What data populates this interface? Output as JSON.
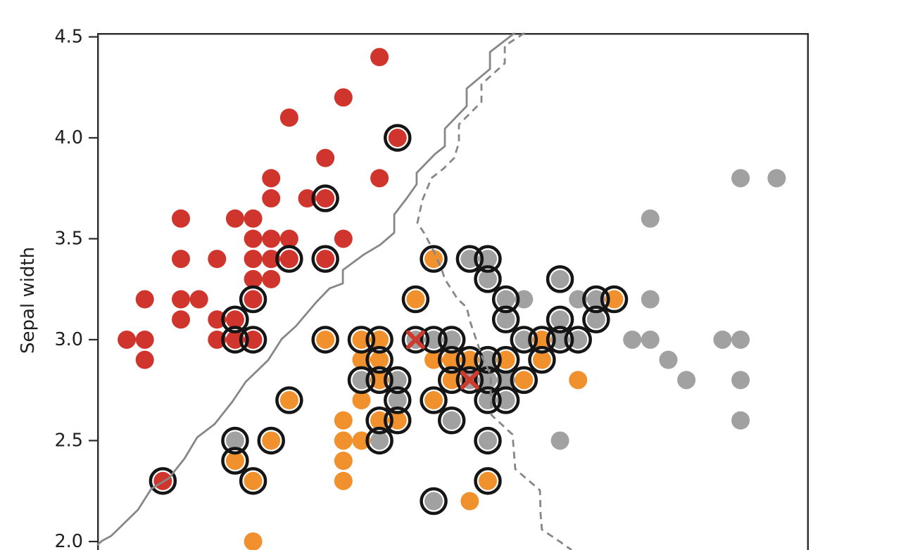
{
  "chart_data": {
    "type": "scatter",
    "title": "",
    "ylabel": "Sepal width",
    "grid": false,
    "legend": "none",
    "x_range_visible": [
      4.136,
      8.078
    ],
    "y_range_visible": [
      1.958,
      4.519
    ],
    "y_ticks": {
      "values": [
        4.5,
        4.0,
        3.5,
        3.0,
        2.5,
        2.0
      ],
      "labels": [
        "4.5",
        "4.0",
        "3.5",
        "3.0",
        "2.5",
        "2.0"
      ]
    },
    "colors": {
      "red": "#cf352c",
      "orange": "#f0912d",
      "gray": "#a1a1a1",
      "ring": "#151515",
      "x_marker": "#cc3b2e",
      "boundary": "#878787",
      "spine": "#2b2b2b",
      "tick_text": "#1f1f1f"
    },
    "series": [
      {
        "name": "red",
        "color": "#cf352c",
        "points": [
          [
            4.3,
            3.0
          ],
          [
            4.4,
            2.9
          ],
          [
            4.4,
            3.0
          ],
          [
            4.4,
            3.2
          ],
          [
            4.6,
            3.1
          ],
          [
            4.6,
            3.2
          ],
          [
            4.6,
            3.4
          ],
          [
            4.6,
            3.6
          ],
          [
            4.7,
            3.2
          ],
          [
            4.8,
            3.0
          ],
          [
            4.8,
            3.1
          ],
          [
            4.8,
            3.4
          ],
          [
            4.9,
            3.6
          ],
          [
            5.0,
            3.3
          ],
          [
            5.0,
            3.4
          ],
          [
            5.0,
            3.5
          ],
          [
            5.0,
            3.6
          ],
          [
            5.1,
            3.3
          ],
          [
            5.1,
            3.4
          ],
          [
            5.1,
            3.5
          ],
          [
            5.1,
            3.7
          ],
          [
            5.1,
            3.8
          ],
          [
            5.2,
            3.5
          ],
          [
            5.2,
            4.1
          ],
          [
            5.3,
            3.7
          ],
          [
            5.4,
            3.9
          ],
          [
            5.5,
            3.5
          ],
          [
            5.5,
            4.2
          ],
          [
            5.7,
            3.8
          ],
          [
            5.7,
            4.4
          ]
        ],
        "circled_points": [
          [
            4.5,
            2.3
          ],
          [
            4.9,
            3.0
          ],
          [
            4.9,
            3.1
          ],
          [
            5.0,
            3.0
          ],
          [
            5.0,
            3.2
          ],
          [
            5.2,
            3.4
          ],
          [
            5.4,
            3.4
          ],
          [
            5.4,
            3.7
          ],
          [
            5.8,
            4.0
          ]
        ]
      },
      {
        "name": "orange",
        "color": "#f0912d",
        "points": [
          [
            5.0,
            2.0
          ],
          [
            5.5,
            2.3
          ],
          [
            5.5,
            2.4
          ],
          [
            5.5,
            2.5
          ],
          [
            5.5,
            2.6
          ],
          [
            5.6,
            2.5
          ],
          [
            5.6,
            2.7
          ],
          [
            5.6,
            2.9
          ],
          [
            6.0,
            2.9
          ],
          [
            6.2,
            2.2
          ],
          [
            6.8,
            2.8
          ]
        ],
        "circled_points": [
          [
            4.9,
            2.4
          ],
          [
            5.0,
            2.3
          ],
          [
            5.1,
            2.5
          ],
          [
            5.2,
            2.7
          ],
          [
            5.4,
            3.0
          ],
          [
            5.6,
            3.0
          ],
          [
            5.7,
            2.6
          ],
          [
            5.7,
            2.8
          ],
          [
            5.7,
            2.9
          ],
          [
            5.7,
            3.0
          ],
          [
            5.8,
            2.6
          ],
          [
            5.9,
            3.2
          ],
          [
            6.0,
            2.7
          ],
          [
            6.0,
            3.4
          ],
          [
            6.1,
            2.8
          ],
          [
            6.1,
            2.9
          ],
          [
            6.2,
            2.9
          ],
          [
            6.3,
            2.3
          ],
          [
            6.4,
            2.9
          ],
          [
            6.5,
            2.8
          ],
          [
            6.6,
            2.9
          ],
          [
            6.6,
            3.0
          ],
          [
            7.0,
            3.2
          ]
        ]
      },
      {
        "name": "gray",
        "color": "#a1a1a1",
        "points": [
          [
            6.4,
            2.8
          ],
          [
            6.5,
            3.2
          ],
          [
            6.7,
            2.5
          ],
          [
            6.8,
            3.2
          ],
          [
            7.1,
            3.0
          ],
          [
            7.2,
            3.0
          ],
          [
            7.2,
            3.2
          ],
          [
            7.2,
            3.6
          ],
          [
            7.3,
            2.9
          ],
          [
            7.4,
            2.8
          ],
          [
            7.6,
            3.0
          ],
          [
            7.7,
            2.6
          ],
          [
            7.7,
            2.8
          ],
          [
            7.7,
            3.0
          ],
          [
            7.7,
            3.8
          ],
          [
            7.9,
            3.8
          ]
        ],
        "circled_points": [
          [
            4.9,
            2.5
          ],
          [
            5.6,
            2.8
          ],
          [
            5.7,
            2.5
          ],
          [
            5.8,
            2.7
          ],
          [
            5.8,
            2.8
          ],
          [
            6.0,
            2.2
          ],
          [
            6.0,
            3.0
          ],
          [
            6.1,
            2.6
          ],
          [
            6.1,
            3.0
          ],
          [
            6.2,
            3.4
          ],
          [
            6.3,
            2.5
          ],
          [
            6.3,
            2.7
          ],
          [
            6.3,
            2.8
          ],
          [
            6.3,
            2.9
          ],
          [
            6.3,
            3.3
          ],
          [
            6.3,
            3.4
          ],
          [
            6.4,
            2.7
          ],
          [
            6.4,
            3.1
          ],
          [
            6.4,
            3.2
          ],
          [
            6.5,
            3.0
          ],
          [
            6.7,
            3.0
          ],
          [
            6.7,
            3.1
          ],
          [
            6.7,
            3.3
          ],
          [
            6.8,
            3.0
          ],
          [
            6.9,
            3.1
          ],
          [
            6.9,
            3.2
          ]
        ]
      }
    ],
    "x_marked_points": {
      "color": "#cc3b2e",
      "fill": "#a1a1a1",
      "circled": true,
      "points": [
        [
          5.9,
          3.0
        ],
        [
          6.2,
          2.8
        ]
      ]
    },
    "boundaries": {
      "solid": {
        "color": "#878787",
        "points": [
          [
            4.136,
            1.983
          ],
          [
            4.164,
            2.004
          ],
          [
            4.214,
            2.028
          ],
          [
            4.362,
            2.157
          ],
          [
            4.436,
            2.261
          ],
          [
            4.534,
            2.314
          ],
          [
            4.62,
            2.411
          ],
          [
            4.69,
            2.516
          ],
          [
            4.787,
            2.582
          ],
          [
            4.885,
            2.693
          ],
          [
            4.959,
            2.791
          ],
          [
            5.084,
            2.899
          ],
          [
            5.158,
            3.003
          ],
          [
            5.236,
            3.066
          ],
          [
            5.349,
            3.185
          ],
          [
            5.423,
            3.254
          ],
          [
            5.497,
            3.279
          ],
          [
            5.497,
            3.345
          ],
          [
            5.614,
            3.422
          ],
          [
            5.704,
            3.47
          ],
          [
            5.782,
            3.53
          ],
          [
            5.782,
            3.62
          ],
          [
            5.848,
            3.697
          ],
          [
            5.906,
            3.77
          ],
          [
            5.906,
            3.826
          ],
          [
            6.008,
            3.92
          ],
          [
            6.062,
            3.958
          ],
          [
            6.062,
            4.045
          ],
          [
            6.183,
            4.157
          ],
          [
            6.183,
            4.244
          ],
          [
            6.312,
            4.341
          ],
          [
            6.312,
            4.425
          ],
          [
            6.448,
            4.519
          ]
        ]
      },
      "dashed": {
        "color": "#878787",
        "dash": [
          10,
          7
        ],
        "points": [
          [
            6.503,
            4.519
          ],
          [
            6.394,
            4.456
          ],
          [
            6.394,
            4.369
          ],
          [
            6.265,
            4.265
          ],
          [
            6.265,
            4.178
          ],
          [
            6.14,
            4.066
          ],
          [
            6.14,
            3.976
          ],
          [
            6.113,
            3.899
          ],
          [
            6.054,
            3.847
          ],
          [
            5.988,
            3.801
          ],
          [
            5.937,
            3.69
          ],
          [
            5.91,
            3.578
          ],
          [
            5.949,
            3.526
          ],
          [
            5.996,
            3.446
          ],
          [
            6.043,
            3.352
          ],
          [
            6.062,
            3.3
          ],
          [
            6.132,
            3.202
          ],
          [
            6.183,
            3.16
          ],
          [
            6.203,
            3.087
          ],
          [
            6.269,
            2.913
          ],
          [
            6.316,
            2.826
          ],
          [
            6.316,
            2.721
          ],
          [
            6.32,
            2.627
          ],
          [
            6.437,
            2.53
          ],
          [
            6.452,
            2.359
          ],
          [
            6.589,
            2.254
          ],
          [
            6.593,
            2.129
          ],
          [
            6.6,
            2.059
          ],
          [
            6.698,
            2.0
          ],
          [
            6.764,
            1.958
          ]
        ]
      }
    }
  }
}
